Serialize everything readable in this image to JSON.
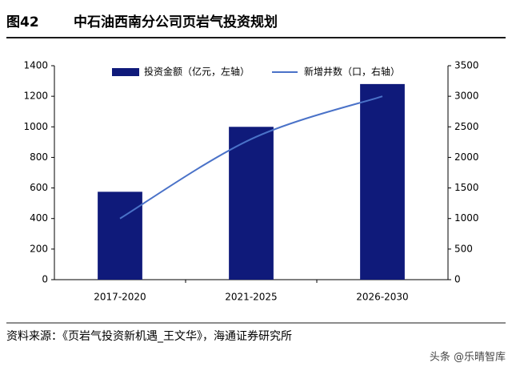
{
  "chart_data": {
    "type": "bar",
    "figure_label": "图42",
    "title": "中石油西南分公司页岩气投资规划",
    "source": "资料来源：《页岩气投资新机遇_王文华》，海通证券研究所",
    "watermark": "头条 @乐晴智库",
    "categories": [
      "2017-2020",
      "2021-2025",
      "2026-2030"
    ],
    "series": [
      {
        "name": "投资金额（亿元，左轴）",
        "type": "bar",
        "color": "#0f1a7a",
        "values": [
          575,
          1000,
          1280
        ]
      },
      {
        "name": "新增井数（口，右轴）",
        "type": "line",
        "axis": "y2",
        "color": "#4a72c8",
        "values": [
          1000,
          2300,
          3000
        ]
      }
    ],
    "ylim": [
      0,
      1400
    ],
    "yticks": [
      0,
      200,
      400,
      600,
      800,
      1000,
      1200,
      1400
    ],
    "y2lim": [
      0,
      3500
    ],
    "y2ticks": [
      0,
      500,
      1000,
      1500,
      2000,
      2500,
      3000,
      3500
    ],
    "grid": false
  }
}
